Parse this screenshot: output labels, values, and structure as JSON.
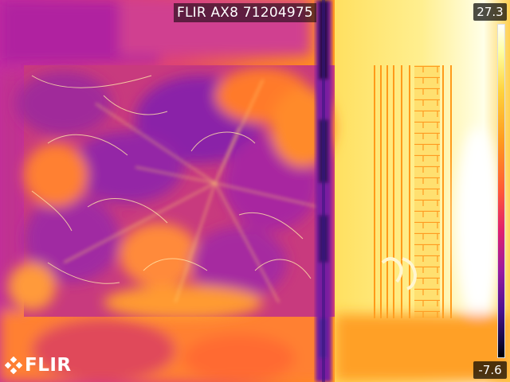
{
  "header": {
    "camera_label": "FLIR AX8 71204975"
  },
  "scale": {
    "max": "27.3",
    "min": "-7.6"
  },
  "logo": {
    "text": "FLIR"
  },
  "colors": {
    "palette": "iron",
    "overlay": "#000000"
  }
}
